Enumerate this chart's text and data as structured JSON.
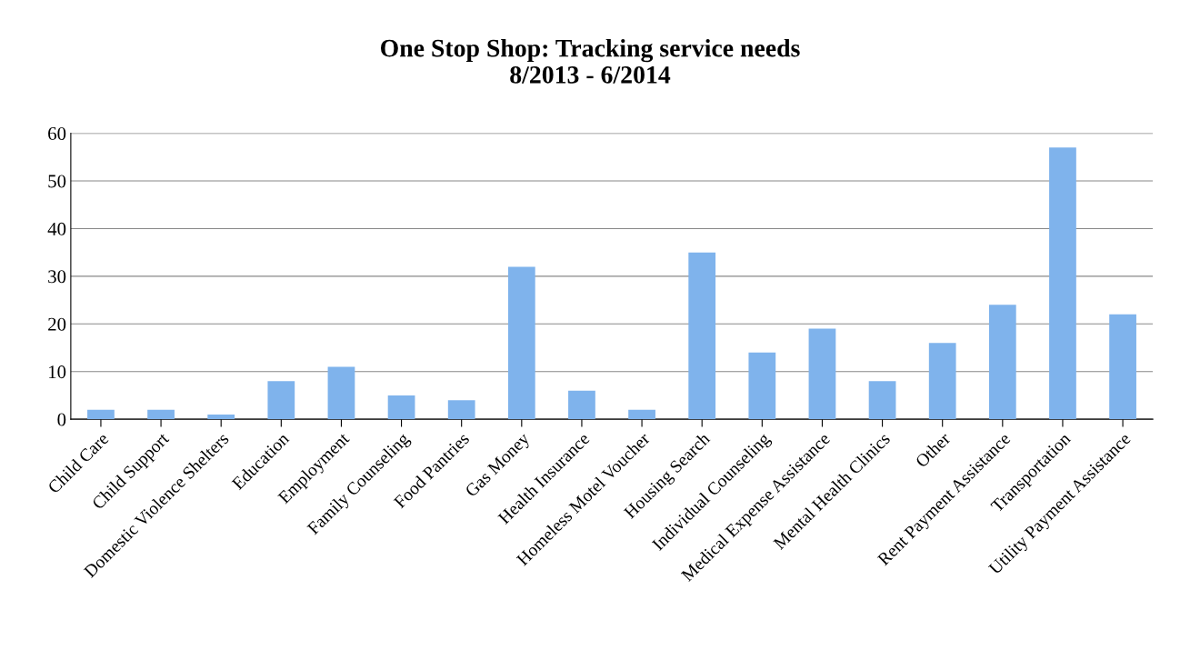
{
  "chart_data": {
    "type": "bar",
    "title": "One Stop Shop: Tracking service needs\n8/2013 - 6/2014",
    "categories": [
      "Child Care",
      "Child Support",
      "Domestic Violence Shelters",
      "Education",
      "Employment",
      "Family Counseling",
      "Food Pantries",
      "Gas Money",
      "Health Insurance",
      "Homeless Motel Voucher",
      "Housing Search",
      "Individual Counseling",
      "Medical Expense Assistance",
      "Mental Health Clinics",
      "Other",
      "Rent Payment Assistance",
      "Transportation",
      "Utility Payment Assistance"
    ],
    "values": [
      2,
      2,
      1,
      8,
      11,
      5,
      4,
      32,
      6,
      2,
      35,
      14,
      19,
      8,
      16,
      24,
      57,
      22
    ],
    "color": "#7fb3ec",
    "ylim": [
      0,
      60
    ],
    "yticks": [
      0,
      10,
      20,
      30,
      40,
      50,
      60
    ],
    "grid": "y",
    "legend": false
  }
}
